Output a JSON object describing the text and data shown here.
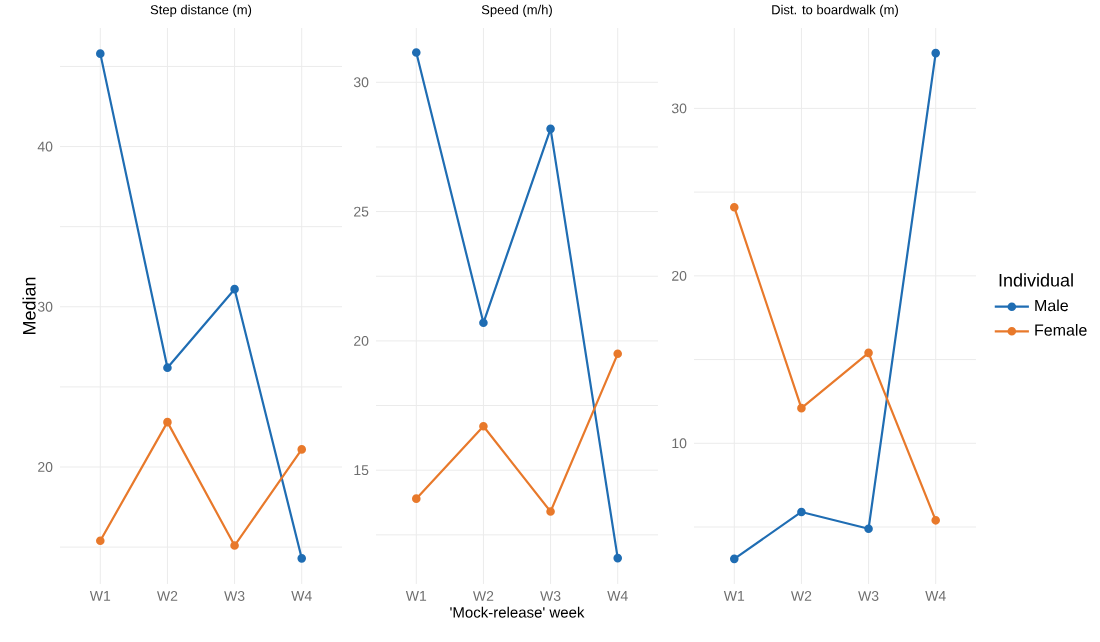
{
  "chart_data": [
    {
      "type": "line",
      "title": "Step distance (m)",
      "ylabel": "Median",
      "categories": [
        "W1",
        "W2",
        "W3",
        "W4"
      ],
      "series": [
        {
          "color": "#1f6db3",
          "values": [
            45.8,
            26.2,
            31.1,
            14.3
          ]
        },
        {
          "color": "#e8792b",
          "values": [
            15.4,
            22.8,
            15.1,
            21.1
          ]
        }
      ],
      "ylim": [
        12.7,
        47.4
      ],
      "yticks": [
        {
          "value": 15,
          "label": null
        },
        20,
        {
          "value": 25,
          "label": null
        },
        30,
        {
          "value": 35,
          "label": null
        },
        40,
        {
          "value": 45,
          "label": null
        }
      ],
      "grid": true,
      "marker": "circle",
      "line_style": "solid",
      "legend": false
    },
    {
      "type": "line",
      "title": "Speed (m/h)",
      "xlabel": "'Mock-release' week",
      "categories": [
        "W1",
        "W2",
        "W3",
        "W4"
      ],
      "series": [
        {
          "color": "#1f6db3",
          "values": [
            31.15,
            20.7,
            28.2,
            11.6
          ]
        },
        {
          "color": "#e8792b",
          "values": [
            13.9,
            16.7,
            13.4,
            19.5
          ]
        }
      ],
      "ylim": [
        10.6,
        32.1
      ],
      "yticks": [
        {
          "value": 12.5,
          "label": null
        },
        15,
        {
          "value": 17.5,
          "label": null
        },
        20,
        {
          "value": 22.5,
          "label": null
        },
        25,
        {
          "value": 27.5,
          "label": null
        },
        30
      ],
      "grid": true,
      "marker": "circle",
      "line_style": "solid",
      "legend": false
    },
    {
      "type": "line",
      "title": "Dist. to boardwalk (m)",
      "legend_title": "Individual",
      "categories": [
        "W1",
        "W2",
        "W3",
        "W4"
      ],
      "series": [
        {
          "name": "Male",
          "color": "#1f6db3",
          "values": [
            3.1,
            5.9,
            4.9,
            33.3
          ]
        },
        {
          "name": "Female",
          "color": "#e8792b",
          "values": [
            24.1,
            12.1,
            15.4,
            5.4
          ]
        }
      ],
      "ylim": [
        1.6,
        34.8
      ],
      "yticks": [
        {
          "value": 5,
          "label": null
        },
        10,
        {
          "value": 15,
          "label": null
        },
        20,
        {
          "value": 25,
          "label": null
        },
        30
      ],
      "grid": true,
      "marker": "circle",
      "line_style": "solid",
      "legend": "right"
    }
  ]
}
